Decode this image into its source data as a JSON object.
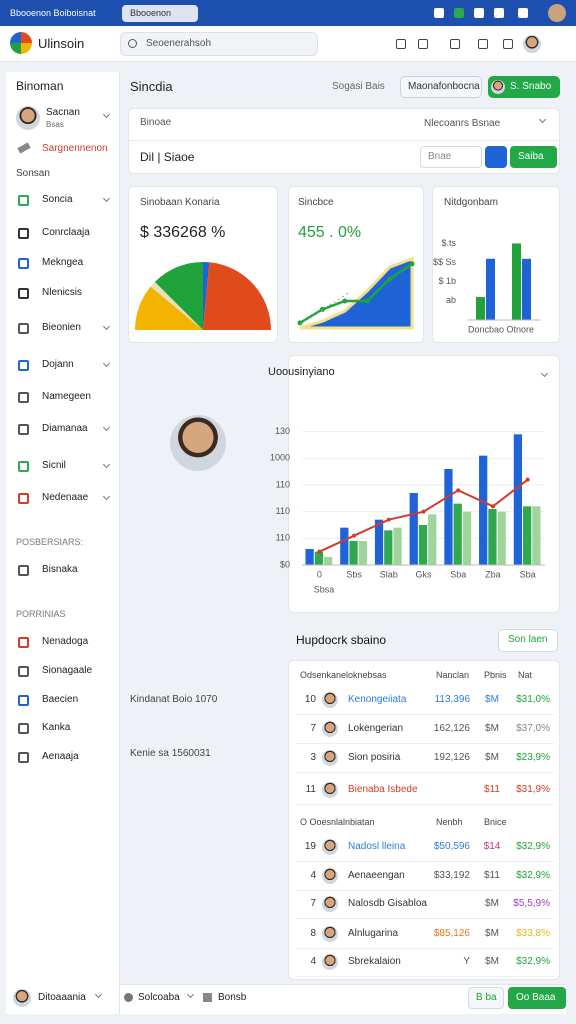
{
  "browser": {
    "tabs": [
      "Bbooenon Boiboisnat",
      "Bbooenon"
    ]
  },
  "header": {
    "brand": "Ulinsoin",
    "search": "Seoenerahsoh"
  },
  "sidebar": {
    "title": "Binoman",
    "user": {
      "name": "Sacnan",
      "role": "Bsas"
    },
    "link": "Sargnennenon",
    "section": "Sonsan",
    "items": [
      "Soncia",
      "Conrclaaja",
      "Mekngea",
      "Nlenicsis",
      "Bieonien",
      "Dojann",
      "Namegeen",
      "Diamanaa",
      "Sicnil",
      "Nedenaae"
    ],
    "group1": {
      "title": "POSBERSIARS:",
      "items": [
        "Bisnaka"
      ]
    },
    "group2": {
      "title": "PORRINIAS",
      "items": [
        "Nenadoga",
        "Sionagaale",
        "Baecien",
        "Kanka",
        "Aenaaja"
      ]
    },
    "footer": "Ditoaaania"
  },
  "main": {
    "title": "Sincdia",
    "meta": "Sogasi Bais",
    "button": "Maonafonbocna",
    "primary": "S. Snabo",
    "filter": {
      "label": "Binoae",
      "search": "Nlecoanrs Bsnae",
      "field": "Dil | Siaoe",
      "input": "Bnae",
      "button": "Saiba"
    },
    "notes": [
      "Kindanat Boio 1070",
      "Kenie sa 1560031"
    ],
    "section": {
      "title": "Hupdocrk sbaino",
      "button": "Son laen"
    },
    "tables": [
      {
        "headers": [
          "Odsenkaneloknebsas",
          "Nanclan",
          "Pbnis",
          "Nat"
        ],
        "rows": [
          [
            "10",
            "Kenongeiiata",
            "113,396",
            "$M",
            "$31,0%"
          ],
          [
            "7",
            "Lokengerian",
            "162,126",
            "$M",
            "$37,0%"
          ],
          [
            "3",
            "Sion posiria",
            "192,126",
            "$M",
            "$23,9%"
          ],
          [
            "11",
            "Bienaba Isbede",
            null,
            "$11",
            "$31,9%"
          ]
        ]
      },
      {
        "headers": [
          "O Ooesnlalnbiatan",
          "Nenbh",
          "Bnice"
        ],
        "rows": [
          [
            "19",
            "Nadosl lleina",
            "$50,596",
            "$14",
            "$32,9%"
          ],
          [
            "4",
            "Aenaeengan",
            "$33,192",
            "$11",
            "$32,9%"
          ],
          [
            "7",
            "Nalosdb Gisabloa",
            null,
            "$M",
            "$5,5,9%"
          ],
          [
            "8",
            "Alnlugarina",
            "$85,126",
            "$M",
            "$33,8%"
          ],
          [
            "4",
            "Sbrekalaion",
            "Y",
            "$M",
            "$32,9%"
          ]
        ]
      }
    ],
    "footer": {
      "left": [
        "Solcoaba",
        "Bonsb"
      ],
      "buttons": [
        "B ba",
        "Oo Baaa"
      ]
    }
  },
  "chart_data": [
    {
      "type": "pie",
      "title": "Sinobaan Konaria",
      "subtitle": "$ 336268 %",
      "values": [
        22,
        3,
        25,
        3,
        47
      ],
      "colors": [
        "#f2b400",
        "#e9dfb8",
        "#1fa33a",
        "#1e64d6",
        "#e04b1c"
      ]
    },
    {
      "type": "line",
      "title": "Sincbce",
      "subtitle": "455 . 0%",
      "categories": [
        null,
        null,
        null,
        null,
        null,
        null
      ],
      "ylim": [
        0,
        4.5
      ],
      "series": [
        {
          "color": "#1e64d6",
          "fill": true,
          "values": [
            0,
            0.4,
            1,
            2.2,
            3.6,
            4.1
          ]
        },
        {
          "color": "#1fa33a",
          "values": [
            0.3,
            1.1,
            1.6,
            1.6,
            2.9,
            3.8
          ]
        }
      ]
    },
    {
      "type": "bar",
      "title": "Nitdgonbam",
      "xlabel": "Doncbao Otnore",
      "categories": [
        null,
        null
      ],
      "ylim": [
        0,
        4.6
      ],
      "yticks": [
        {
          "value": 1,
          "label": "ab"
        },
        {
          "value": 2,
          "label": "$ 1b"
        },
        {
          "value": 3,
          "label": "$$ Ss"
        },
        {
          "value": 4,
          "label": "$.ts"
        }
      ],
      "series": [
        {
          "color": "#1fa33a",
          "values": [
            1.2,
            4
          ]
        },
        {
          "color": "#1e64d6",
          "values": [
            3.2,
            3.2
          ]
        }
      ]
    },
    {
      "type": "bar",
      "title": "Uoousinyiano",
      "xlabel": "Sbsa",
      "categories": [
        "0",
        "Sbs",
        "Slab",
        "Gks",
        "Sba",
        "Zba",
        "Sba"
      ],
      "ylim": [
        0,
        6
      ],
      "yticks": [
        {
          "value": 0,
          "label": "$0"
        },
        {
          "value": 1,
          "label": "110"
        },
        {
          "value": 2,
          "label": "110"
        },
        {
          "value": 3,
          "label": "110"
        },
        {
          "value": 4,
          "label": "1000"
        },
        {
          "value": 5,
          "label": "130"
        }
      ],
      "grid": true,
      "series": [
        {
          "color": "#1e64d6",
          "values": [
            0.6,
            1.4,
            1.7,
            2.7,
            3.6,
            4.1,
            4.9
          ]
        },
        {
          "color": "#2fa84f",
          "values": [
            0.5,
            0.9,
            1.3,
            1.5,
            2.3,
            2.1,
            2.2
          ]
        },
        {
          "color": "#9fd49a",
          "values": [
            0.3,
            0.9,
            1.4,
            1.9,
            2.0,
            2.0,
            2.2
          ]
        },
        {
          "type": "line",
          "color": "#d23b2b",
          "values": [
            0.5,
            1.1,
            1.7,
            2.0,
            2.8,
            2.2,
            3.2
          ]
        }
      ]
    }
  ]
}
